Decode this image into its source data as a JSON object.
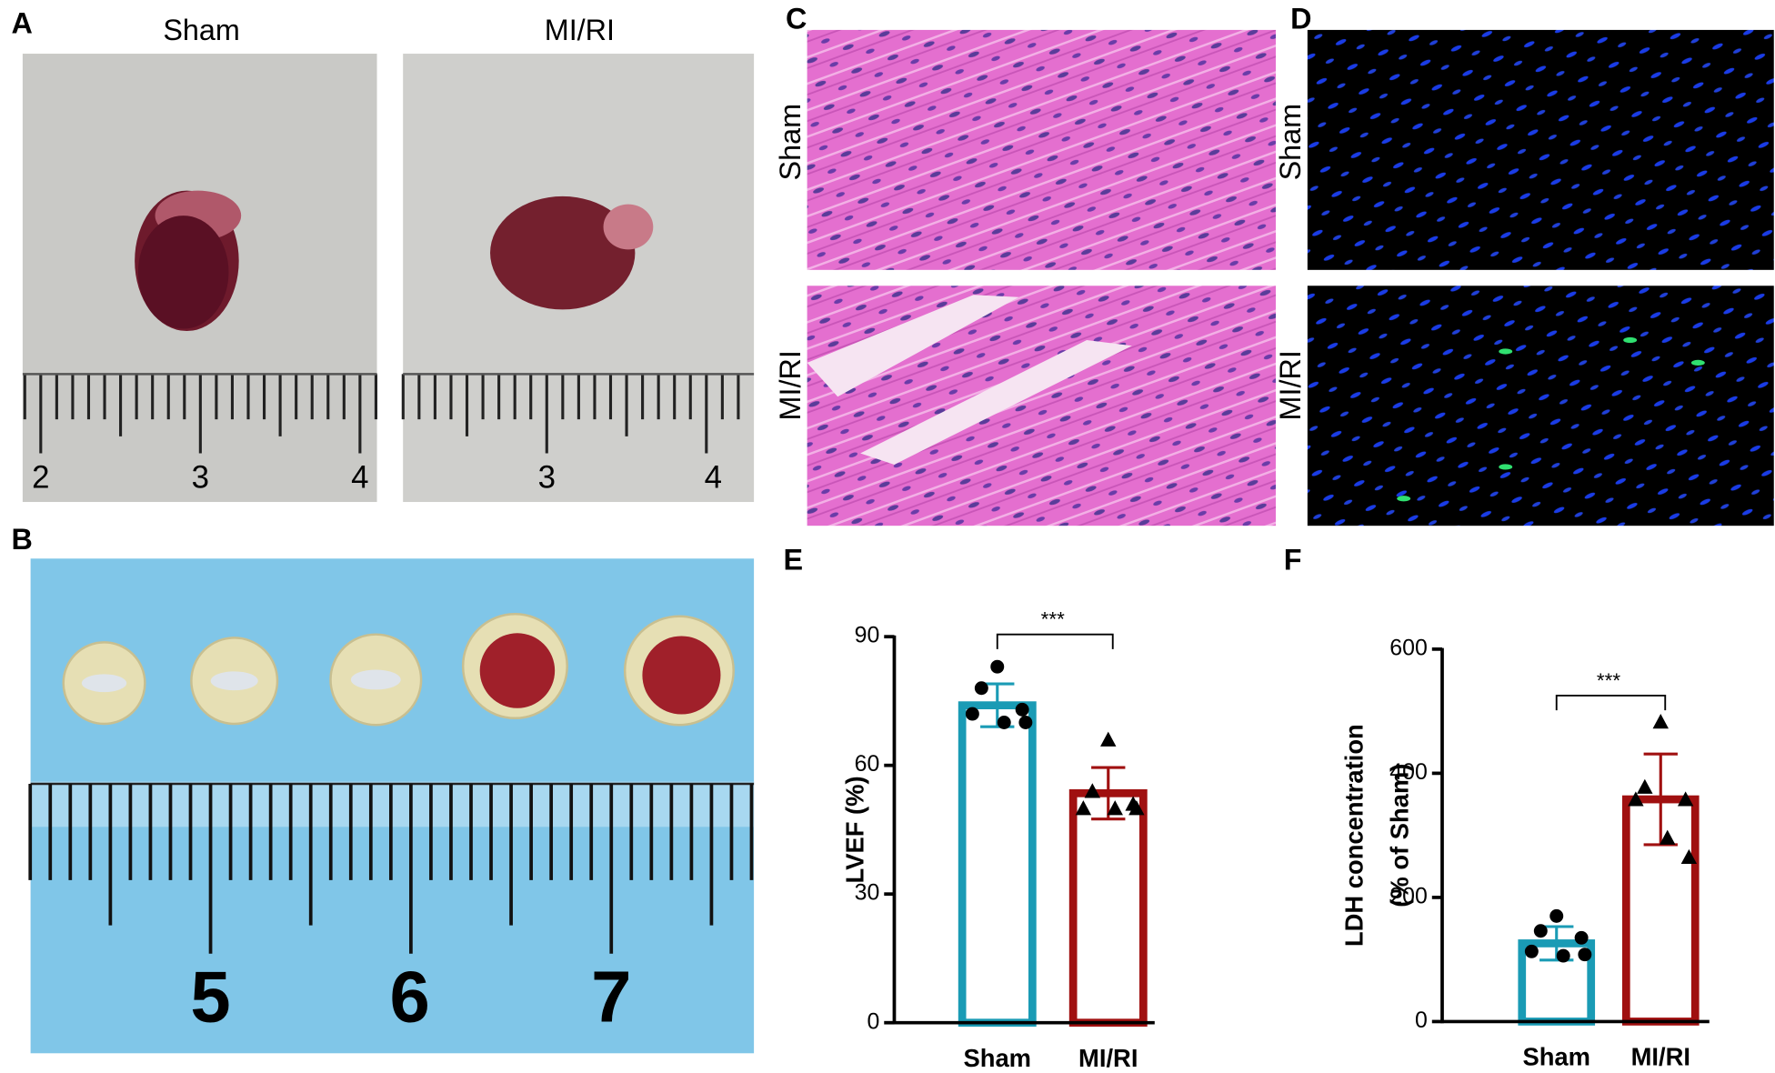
{
  "panel_letters": [
    "A",
    "B",
    "C",
    "D",
    "E",
    "F"
  ],
  "panel_a": {
    "labels": [
      "Sham",
      "MI/RI"
    ],
    "ruler_numbers": [
      [
        "2",
        "3",
        "4"
      ],
      [
        "3",
        "4"
      ]
    ]
  },
  "panel_b": {
    "ruler_numbers": [
      "5",
      "6",
      "7"
    ]
  },
  "panel_c": {
    "labels": [
      "Sham",
      "MI/RI"
    ]
  },
  "panel_d": {
    "labels": [
      "Sham",
      "MI/RI"
    ]
  },
  "chart_data": [
    {
      "type": "bar",
      "y_label": [
        "LVEF (%)"
      ],
      "categories": [
        "Sham",
        "MI/RI"
      ],
      "values": [
        74,
        53.5
      ],
      "errors": [
        5,
        6
      ],
      "points": [
        [
          83,
          78,
          73,
          72,
          70,
          70
        ],
        [
          66,
          54,
          51,
          50,
          50,
          50
        ]
      ],
      "colors": [
        "#1a9bb5",
        "#a01010"
      ],
      "markers": [
        "circle",
        "triangle"
      ],
      "significance": "***",
      "ylim": [
        0,
        90
      ],
      "yticks": [
        0,
        30,
        60,
        90
      ]
    },
    {
      "type": "bar",
      "y_label": [
        "LDH concentration",
        "(% of Sham)"
      ],
      "categories": [
        "Sham",
        "MI/RI"
      ],
      "values": [
        126,
        358
      ],
      "errors": [
        27,
        73
      ],
      "points": [
        [
          170,
          146,
          135,
          113,
          106,
          108
        ],
        [
          483,
          378,
          358,
          358,
          296,
          265
        ]
      ],
      "colors": [
        "#1a9bb5",
        "#a01010"
      ],
      "markers": [
        "circle",
        "triangle"
      ],
      "significance": "***",
      "ylim": [
        0,
        600
      ],
      "yticks": [
        0,
        200,
        400,
        600
      ]
    }
  ]
}
